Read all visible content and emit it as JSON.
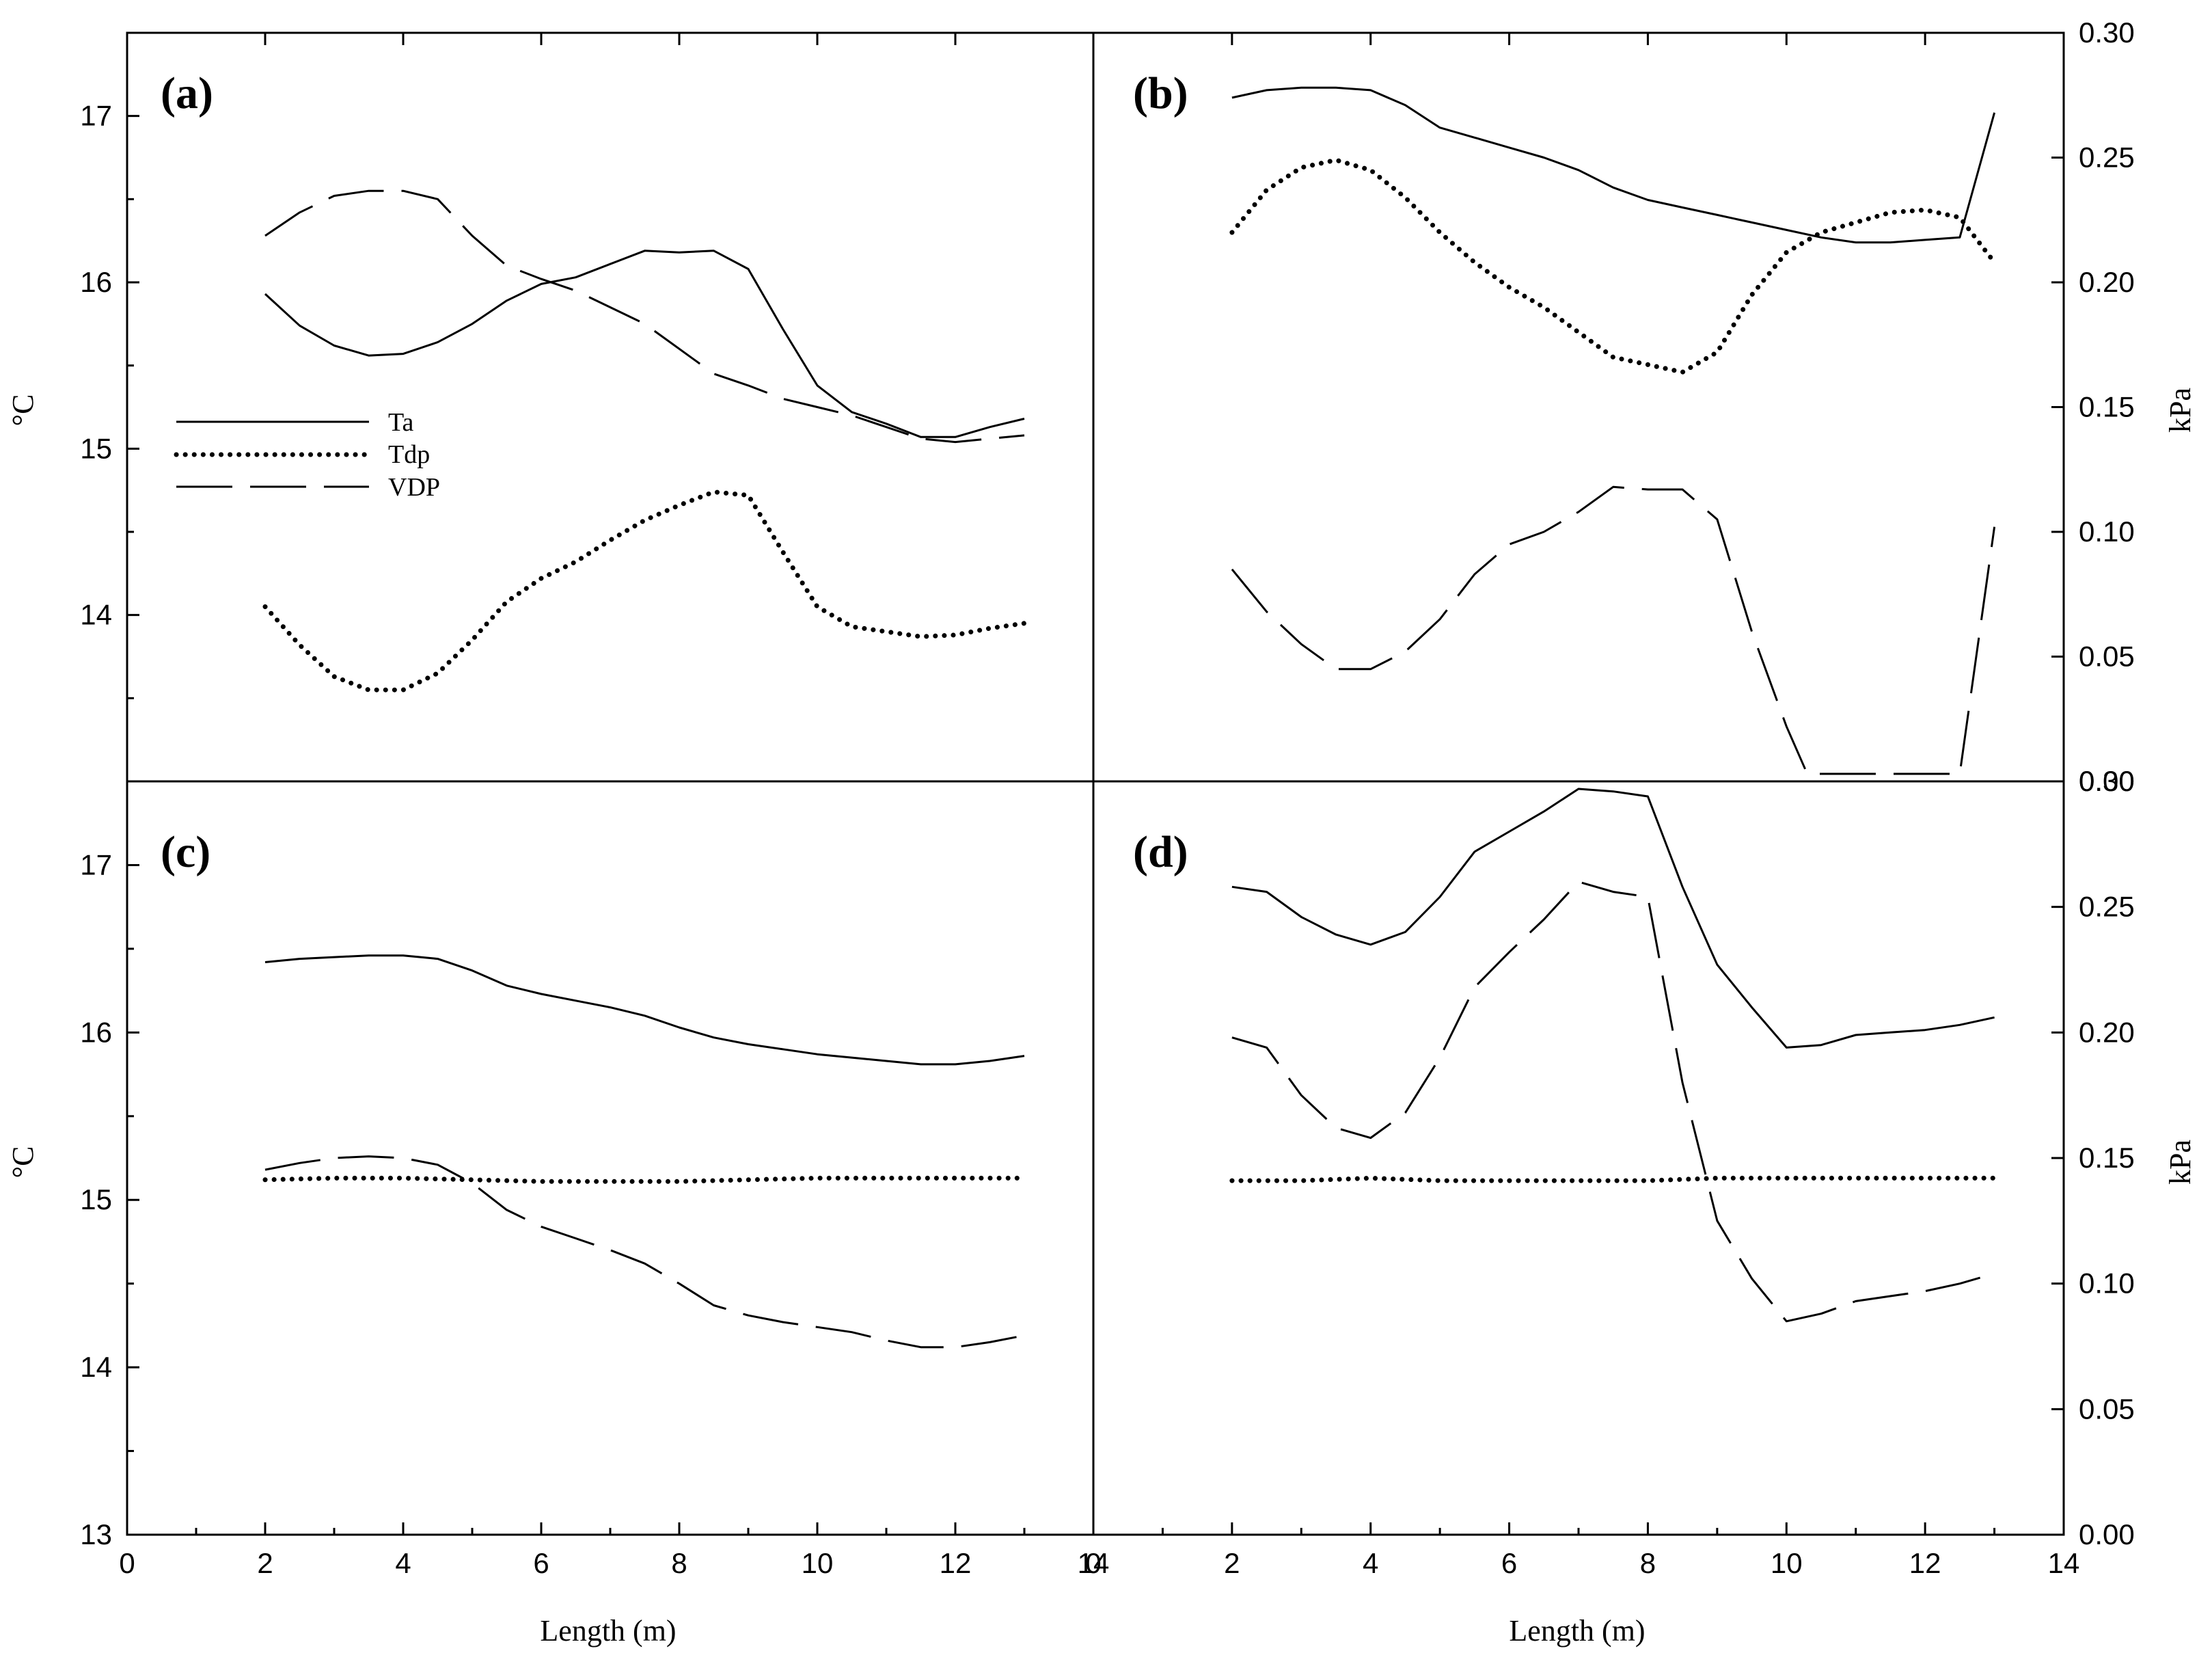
{
  "figure": {
    "x_axis_title": "Length (m)",
    "left_axis_title": "°C",
    "right_axis_title": "kPa",
    "left_ticks": [
      "13",
      "14",
      "15",
      "16",
      "17"
    ],
    "right_ticks": [
      "0.00",
      "0.05",
      "0.10",
      "0.15",
      "0.20",
      "0.25",
      "0.30"
    ],
    "x_ticks": [
      "0",
      "2",
      "4",
      "6",
      "8",
      "10",
      "12",
      "14"
    ],
    "legend": [
      "Ta",
      "Tdp",
      "VDP"
    ]
  },
  "chart_data": [
    {
      "type": "line",
      "panel": "(a)",
      "xlim": [
        0,
        14
      ],
      "ylim": [
        13,
        17.5
      ],
      "ylabel": "°C",
      "legend_position": "middle-left",
      "series": [
        {
          "name": "Ta",
          "style": "solid",
          "x": [
            2,
            2.5,
            3,
            3.5,
            4,
            4.5,
            5,
            5.5,
            6,
            6.5,
            7,
            7.5,
            8,
            8.5,
            9,
            9.5,
            10,
            10.5,
            11,
            11.5,
            12,
            12.5,
            13
          ],
          "values": [
            15.93,
            15.74,
            15.62,
            15.56,
            15.57,
            15.64,
            15.75,
            15.89,
            15.99,
            16.03,
            16.11,
            16.19,
            16.18,
            16.19,
            16.08,
            15.72,
            15.38,
            15.22,
            15.15,
            15.07,
            15.07,
            15.13,
            15.18
          ]
        },
        {
          "name": "Tdp",
          "style": "dotted",
          "x": [
            2,
            2.5,
            3,
            3.5,
            4,
            4.5,
            5,
            5.5,
            6,
            6.5,
            7,
            7.5,
            8,
            8.5,
            9,
            9.5,
            10,
            10.5,
            11,
            11.5,
            12,
            12.5,
            13
          ],
          "values": [
            14.05,
            13.82,
            13.63,
            13.55,
            13.55,
            13.65,
            13.85,
            14.08,
            14.22,
            14.32,
            14.45,
            14.57,
            14.66,
            14.74,
            14.72,
            14.38,
            14.05,
            13.93,
            13.9,
            13.87,
            13.88,
            13.92,
            13.95
          ]
        },
        {
          "name": "VDP",
          "style": "dashed",
          "x": [
            2,
            2.5,
            3,
            3.5,
            4,
            4.5,
            5,
            5.5,
            6,
            6.5,
            7,
            7.5,
            8,
            8.5,
            9,
            9.5,
            10,
            10.5,
            11,
            11.5,
            12,
            12.5,
            13
          ],
          "values": [
            16.28,
            16.42,
            16.52,
            16.55,
            16.55,
            16.5,
            16.28,
            16.1,
            16.02,
            15.95,
            15.85,
            15.75,
            15.6,
            15.45,
            15.38,
            15.3,
            15.25,
            15.2,
            15.13,
            15.06,
            15.04,
            15.06,
            15.08
          ]
        }
      ]
    },
    {
      "type": "line",
      "panel": "(b)",
      "xlim": [
        0,
        14
      ],
      "ylim": [
        0,
        0.3
      ],
      "ylabel": "kPa",
      "series": [
        {
          "name": "Ta",
          "style": "solid",
          "x": [
            2,
            2.5,
            3,
            3.5,
            4,
            4.5,
            5,
            5.5,
            6,
            6.5,
            7,
            7.5,
            8,
            8.5,
            9,
            9.5,
            10,
            10.5,
            11,
            11.5,
            12,
            12.5,
            13
          ],
          "values": [
            0.274,
            0.277,
            0.278,
            0.278,
            0.277,
            0.271,
            0.262,
            0.258,
            0.254,
            0.25,
            0.245,
            0.238,
            0.233,
            0.23,
            0.227,
            0.224,
            0.221,
            0.218,
            0.216,
            0.216,
            0.217,
            0.218,
            0.268
          ]
        },
        {
          "name": "Tdp",
          "style": "dotted",
          "x": [
            2,
            2.5,
            3,
            3.5,
            4,
            4.5,
            5,
            5.5,
            6,
            6.5,
            7,
            7.5,
            8,
            8.5,
            9,
            9.5,
            10,
            10.5,
            11,
            11.5,
            12,
            12.5,
            13
          ],
          "values": [
            0.22,
            0.237,
            0.246,
            0.249,
            0.245,
            0.234,
            0.22,
            0.208,
            0.198,
            0.19,
            0.18,
            0.17,
            0.167,
            0.164,
            0.172,
            0.195,
            0.212,
            0.22,
            0.224,
            0.228,
            0.229,
            0.226,
            0.208
          ]
        },
        {
          "name": "VDP",
          "style": "dashed",
          "x": [
            2,
            2.5,
            3,
            3.5,
            4,
            4.5,
            5,
            5.5,
            6,
            6.5,
            7,
            7.5,
            8,
            8.5,
            9,
            9.5,
            10,
            10.3,
            12.5,
            13
          ],
          "values": [
            0.085,
            0.068,
            0.055,
            0.045,
            0.045,
            0.052,
            0.065,
            0.083,
            0.095,
            0.1,
            0.108,
            0.118,
            0.117,
            0.117,
            0.105,
            0.06,
            0.022,
            0.003,
            0.003,
            0.102
          ]
        }
      ]
    },
    {
      "type": "line",
      "panel": "(c)",
      "xlim": [
        0,
        14
      ],
      "ylim": [
        13,
        17.5
      ],
      "ylabel": "°C",
      "series": [
        {
          "name": "Ta",
          "style": "solid",
          "x": [
            2,
            2.5,
            3,
            3.5,
            4,
            4.5,
            5,
            5.5,
            6,
            6.5,
            7,
            7.5,
            8,
            8.5,
            9,
            9.5,
            10,
            10.5,
            11,
            11.5,
            12,
            12.5,
            13
          ],
          "values": [
            16.42,
            16.44,
            16.45,
            16.46,
            16.46,
            16.44,
            16.37,
            16.28,
            16.23,
            16.19,
            16.15,
            16.1,
            16.03,
            15.97,
            15.93,
            15.9,
            15.87,
            15.85,
            15.83,
            15.81,
            15.81,
            15.83,
            15.86
          ]
        },
        {
          "name": "Tdp",
          "style": "dotted",
          "x": [
            2,
            3,
            4,
            5,
            6,
            7,
            8,
            9,
            10,
            11,
            12,
            13
          ],
          "values": [
            15.12,
            15.13,
            15.13,
            15.12,
            15.11,
            15.11,
            15.11,
            15.12,
            15.13,
            15.13,
            15.13,
            15.13
          ]
        },
        {
          "name": "VDP",
          "style": "dashed",
          "x": [
            2,
            2.5,
            3,
            3.5,
            4,
            4.5,
            5,
            5.5,
            6,
            6.5,
            7,
            7.5,
            8,
            8.5,
            9,
            9.5,
            10,
            10.5,
            11,
            11.5,
            12,
            12.5,
            13
          ],
          "values": [
            15.18,
            15.22,
            15.25,
            15.26,
            15.25,
            15.21,
            15.1,
            14.94,
            14.84,
            14.77,
            14.7,
            14.62,
            14.5,
            14.37,
            14.31,
            14.27,
            14.24,
            14.21,
            14.16,
            14.12,
            14.12,
            14.15,
            14.19
          ]
        }
      ]
    },
    {
      "type": "line",
      "panel": "(d)",
      "xlim": [
        0,
        14
      ],
      "ylim": [
        0,
        0.3
      ],
      "ylabel": "kPa",
      "series": [
        {
          "name": "Ta",
          "style": "solid",
          "x": [
            2,
            2.5,
            3,
            3.5,
            4,
            4.5,
            5,
            5.5,
            6,
            6.5,
            7,
            7.5,
            8,
            8.5,
            9,
            9.5,
            10,
            10.5,
            11,
            11.5,
            12,
            12.5,
            13
          ],
          "values": [
            0.258,
            0.256,
            0.246,
            0.239,
            0.235,
            0.24,
            0.254,
            0.272,
            0.28,
            0.288,
            0.297,
            0.296,
            0.294,
            0.258,
            0.227,
            0.21,
            0.194,
            0.195,
            0.199,
            0.2,
            0.201,
            0.203,
            0.206
          ]
        },
        {
          "name": "Tdp",
          "style": "dotted",
          "x": [
            2,
            3,
            4,
            5,
            6,
            7,
            8,
            9,
            10,
            11,
            12,
            13
          ],
          "values": [
            0.141,
            0.141,
            0.142,
            0.141,
            0.141,
            0.141,
            0.141,
            0.142,
            0.142,
            0.142,
            0.142,
            0.142
          ]
        },
        {
          "name": "VDP",
          "style": "dashed",
          "x": [
            2,
            2.5,
            3,
            3.5,
            4,
            4.5,
            5,
            5.5,
            6,
            6.5,
            7,
            7.5,
            8,
            8.5,
            9,
            9.5,
            10,
            10.5,
            11,
            11.5,
            12,
            12.5,
            13
          ],
          "values": [
            0.198,
            0.194,
            0.175,
            0.162,
            0.158,
            0.168,
            0.19,
            0.218,
            0.232,
            0.245,
            0.26,
            0.256,
            0.254,
            0.18,
            0.125,
            0.102,
            0.085,
            0.088,
            0.093,
            0.095,
            0.097,
            0.1,
            0.104
          ]
        }
      ]
    }
  ]
}
